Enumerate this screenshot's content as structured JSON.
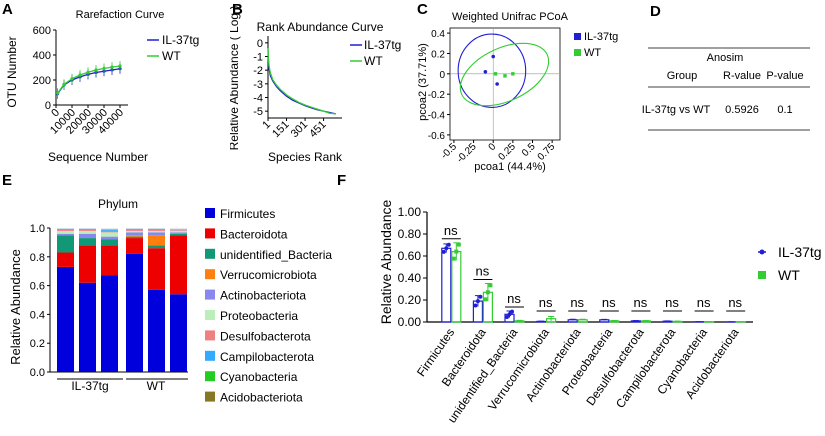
{
  "colors": {
    "il37tg": "#1f1fd6",
    "wt": "#33cc33"
  },
  "panel_labels": {
    "A": "A",
    "B": "B",
    "C": "C",
    "D": "D",
    "E": "E",
    "F": "F"
  },
  "chart_data": [
    {
      "id": "A",
      "type": "line",
      "title": "Rarefaction Curve",
      "xlabel": "Sequence Number",
      "ylabel": "OTU Number",
      "xlim": [
        0,
        45000
      ],
      "ylim": [
        0,
        600
      ],
      "xticks": [
        "0",
        "10000",
        "20000",
        "30000",
        "40000"
      ],
      "yticks": [
        "0",
        "200",
        "400",
        "600"
      ],
      "x": [
        1000,
        5000,
        10000,
        15000,
        20000,
        25000,
        30000,
        35000,
        40000
      ],
      "series": [
        {
          "name": "IL-37tg",
          "values": [
            90,
            160,
            200,
            225,
            245,
            260,
            270,
            280,
            290
          ]
        },
        {
          "name": "WT",
          "values": [
            95,
            165,
            210,
            240,
            262,
            280,
            292,
            303,
            312
          ]
        }
      ]
    },
    {
      "id": "B",
      "type": "line",
      "title": "Rank Abundance Curve",
      "xlabel": "Species Rank",
      "ylabel": "Relative Abundance ( Log )",
      "xlim": [
        1,
        600
      ],
      "ylim": [
        -5.5,
        0.5
      ],
      "xticks": [
        "1",
        "151",
        "301",
        "451"
      ],
      "yticks": [
        "0",
        "-1",
        "-2",
        "-3",
        "-4",
        "-5"
      ],
      "x": [
        1,
        5,
        10,
        20,
        40,
        70,
        100,
        150,
        200,
        250,
        300,
        350,
        400,
        450,
        500,
        550
      ],
      "series": [
        {
          "name": "IL-37tg",
          "values": [
            -0.5,
            -1.4,
            -1.9,
            -2.4,
            -2.8,
            -3.2,
            -3.5,
            -3.9,
            -4.2,
            -4.4,
            -4.6,
            -4.75,
            -4.9,
            -5.0,
            -5.1,
            -5.2
          ]
        },
        {
          "name": "WT",
          "values": [
            -0.4,
            -1.2,
            -1.7,
            -2.2,
            -2.7,
            -3.1,
            -3.4,
            -3.8,
            -4.1,
            -4.35,
            -4.55,
            -4.7,
            -4.85,
            -5.0,
            -5.15,
            -5.2
          ]
        }
      ]
    },
    {
      "id": "C",
      "type": "scatter",
      "title": "Weighted Unifrac PCoA",
      "xlabel": "pcoa1 (44.4%)",
      "ylabel": "pcoa2 (37.71%)",
      "xlim": [
        -0.55,
        0.85
      ],
      "ylim": [
        -0.65,
        0.45
      ],
      "xticks": [
        "-0.5",
        "-0.25",
        "0",
        "0.25",
        "0.5",
        "0.75"
      ],
      "yticks": [
        "0.4",
        "0.2",
        "0",
        "-0.2",
        "-0.4",
        "-0.6"
      ],
      "series": [
        {
          "name": "IL-37tg",
          "points": [
            [
              -0.1,
              0.02
            ],
            [
              0.0,
              0.17
            ],
            [
              0.05,
              -0.1
            ]
          ]
        },
        {
          "name": "WT",
          "points": [
            [
              0.03,
              0.0
            ],
            [
              0.15,
              -0.02
            ],
            [
              0.25,
              0.0
            ]
          ]
        }
      ]
    },
    {
      "id": "D",
      "type": "table",
      "title": "Anosim",
      "columns": [
        "Group",
        "R-value",
        "P-value"
      ],
      "rows": [
        [
          "IL-37tg vs WT",
          "0.5926",
          "0.1"
        ]
      ]
    },
    {
      "id": "E",
      "type": "bar",
      "stacked": true,
      "title": "Phylum",
      "ylabel": "Relative Abundance",
      "ylim": [
        0,
        1.0
      ],
      "yticks": [
        "0.0",
        "0.2",
        "0.4",
        "0.6",
        "0.8",
        "1.0"
      ],
      "groups": [
        "IL-37tg",
        "WT"
      ],
      "samples": 6,
      "series": [
        {
          "name": "Firmicutes",
          "color": "#0000dd",
          "values": [
            0.73,
            0.62,
            0.67,
            0.82,
            0.57,
            0.54
          ]
        },
        {
          "name": "Bacteroidota",
          "color": "#ee0000",
          "values": [
            0.1,
            0.26,
            0.21,
            0.11,
            0.29,
            0.41
          ]
        },
        {
          "name": "unidentified_Bacteria",
          "color": "#119977",
          "values": [
            0.12,
            0.05,
            0.04,
            0.01,
            0.02,
            0.01
          ]
        },
        {
          "name": "Verrucomicrobiota",
          "color": "#ff7f0e",
          "values": [
            0.0,
            0.0,
            0.0,
            0.01,
            0.07,
            0.0
          ]
        },
        {
          "name": "Actinobacteriota",
          "color": "#8888ee",
          "values": [
            0.01,
            0.03,
            0.02,
            0.02,
            0.02,
            0.01
          ]
        },
        {
          "name": "Proteobacteria",
          "color": "#bbeebb",
          "values": [
            0.02,
            0.02,
            0.03,
            0.01,
            0.01,
            0.01
          ]
        },
        {
          "name": "Desulfobacterota",
          "color": "#f08080",
          "values": [
            0.01,
            0.01,
            0.01,
            0.01,
            0.01,
            0.005
          ]
        },
        {
          "name": "Campilobacterota",
          "color": "#33aaff",
          "values": [
            0.005,
            0.005,
            0.01,
            0.005,
            0.005,
            0.005
          ]
        },
        {
          "name": "Cyanobacteria",
          "color": "#22cc22",
          "values": [
            0.0,
            0.0,
            0.0,
            0.0,
            0.0,
            0.0
          ]
        },
        {
          "name": "Acidobacteriota",
          "color": "#887722",
          "values": [
            0.0,
            0.0,
            0.0,
            0.0,
            0.0,
            0.0
          ]
        }
      ]
    },
    {
      "id": "F",
      "type": "bar",
      "ylabel": "Relative Abundance",
      "ylim": [
        0,
        1.0
      ],
      "yticks": [
        "0.00",
        "0.20",
        "0.40",
        "0.60",
        "0.80",
        "1.00"
      ],
      "categories": [
        "Firmicutes",
        "Bacteroidota",
        "unidentified_Bacteria",
        "Verrucomicrobiota",
        "Actinobacteriota",
        "Proteobacteria",
        "Desulfobacterota",
        "Campilobacterota",
        "Cyanobacteria",
        "Acidobacteriota"
      ],
      "significance": [
        "ns",
        "ns",
        "ns",
        "ns",
        "ns",
        "ns",
        "ns",
        "ns",
        "ns",
        "ns"
      ],
      "series": [
        {
          "name": "IL-37tg",
          "values": [
            0.67,
            0.19,
            0.07,
            0.005,
            0.02,
            0.02,
            0.01,
            0.007,
            0.002,
            0.001
          ],
          "err": [
            0.04,
            0.05,
            0.03,
            0.003,
            0.005,
            0.004,
            0.003,
            0.003,
            0.001,
            0.001
          ]
        },
        {
          "name": "WT",
          "values": [
            0.64,
            0.27,
            0.01,
            0.03,
            0.02,
            0.01,
            0.01,
            0.005,
            0.002,
            0.001
          ],
          "err": [
            0.08,
            0.08,
            0.005,
            0.02,
            0.005,
            0.004,
            0.003,
            0.003,
            0.001,
            0.001
          ]
        }
      ]
    }
  ]
}
